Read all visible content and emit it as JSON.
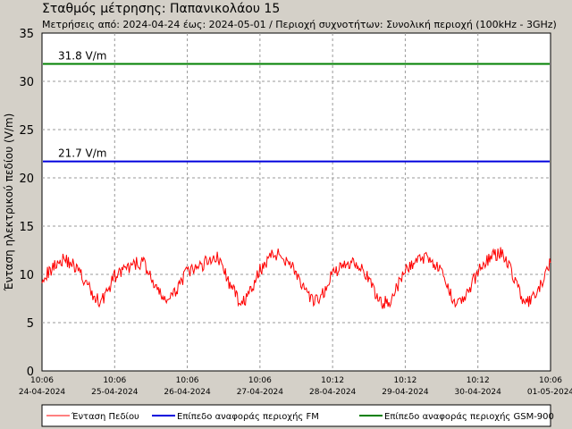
{
  "header": {
    "title": "Σταθμός μέτρησης: Παπανικολάου 15",
    "subtitle": "Μετρήσεις από: 2024-04-24 έως: 2024-05-01 / Περιοχή συχνοτήτων: Συνολική περιοχή (100kHz - 3GHz)"
  },
  "chart_data": {
    "type": "line",
    "ylabel": "Ένταση ηλεκτρικού πεδίου (V/m)",
    "xlabel": "",
    "ylim": [
      0,
      35
    ],
    "yticks": [
      0,
      5,
      10,
      15,
      20,
      25,
      30,
      35
    ],
    "grid": true,
    "x_ticks": [
      {
        "time": "10:06",
        "date": "24-04-2024"
      },
      {
        "time": "10:06",
        "date": "25-04-2024"
      },
      {
        "time": "10:06",
        "date": "26-04-2024"
      },
      {
        "time": "10:06",
        "date": "27-04-2024"
      },
      {
        "time": "10:12",
        "date": "28-04-2024"
      },
      {
        "time": "10:12",
        "date": "29-04-2024"
      },
      {
        "time": "10:12",
        "date": "30-04-2024"
      },
      {
        "time": "10:06",
        "date": "01-05-2024"
      }
    ],
    "series": [
      {
        "name": "Ένταση Πεδίου",
        "color": "#ff0000",
        "x_days": [
          0,
          0.1,
          0.2,
          0.3,
          0.4,
          0.5,
          0.6,
          0.7,
          0.8,
          0.9,
          1.0,
          1.1,
          1.2,
          1.3,
          1.4,
          1.5,
          1.6,
          1.7,
          1.8,
          1.9,
          2.0,
          2.1,
          2.2,
          2.3,
          2.4,
          2.5,
          2.6,
          2.7,
          2.8,
          2.9,
          3.0,
          3.1,
          3.2,
          3.3,
          3.4,
          3.5,
          3.6,
          3.7,
          3.8,
          3.9,
          4.0,
          4.1,
          4.2,
          4.3,
          4.4,
          4.5,
          4.6,
          4.7,
          4.8,
          4.9,
          5.0,
          5.1,
          5.2,
          5.3,
          5.4,
          5.5,
          5.6,
          5.7,
          5.8,
          5.9,
          6.0,
          6.1,
          6.2,
          6.3,
          6.4,
          6.5,
          6.6,
          6.7,
          6.8,
          6.9,
          7.0
        ],
        "values": [
          9.8,
          10.2,
          11.3,
          11.6,
          11.2,
          10.4,
          9.2,
          7.8,
          7.2,
          8.2,
          9.8,
          10.3,
          10.6,
          11.1,
          11.3,
          9.6,
          8.1,
          7.4,
          7.6,
          9.2,
          10.2,
          10.5,
          10.9,
          11.6,
          11.9,
          10.6,
          8.6,
          7.5,
          7.3,
          8.6,
          10.4,
          11.5,
          12.2,
          11.8,
          11.4,
          10.2,
          8.4,
          7.3,
          7.2,
          8.4,
          10.2,
          10.6,
          11.1,
          11.4,
          10.8,
          9.3,
          7.8,
          7.0,
          7.4,
          8.8,
          10.4,
          11.1,
          11.6,
          11.9,
          11.2,
          10.1,
          8.2,
          7.2,
          7.4,
          8.6,
          10.3,
          11.3,
          11.9,
          12.3,
          11.4,
          9.7,
          7.6,
          7.0,
          7.8,
          9.4,
          11.2
        ]
      },
      {
        "name": "Επίπεδο αναφοράς περιοχής FM",
        "color": "#0000dd",
        "constant": 21.7,
        "label": "21.7 V/m"
      },
      {
        "name": "Επίπεδο αναφοράς περιοχής GSM-900",
        "color": "#008000",
        "constant": 31.8,
        "label": "31.8 V/m"
      }
    ]
  }
}
